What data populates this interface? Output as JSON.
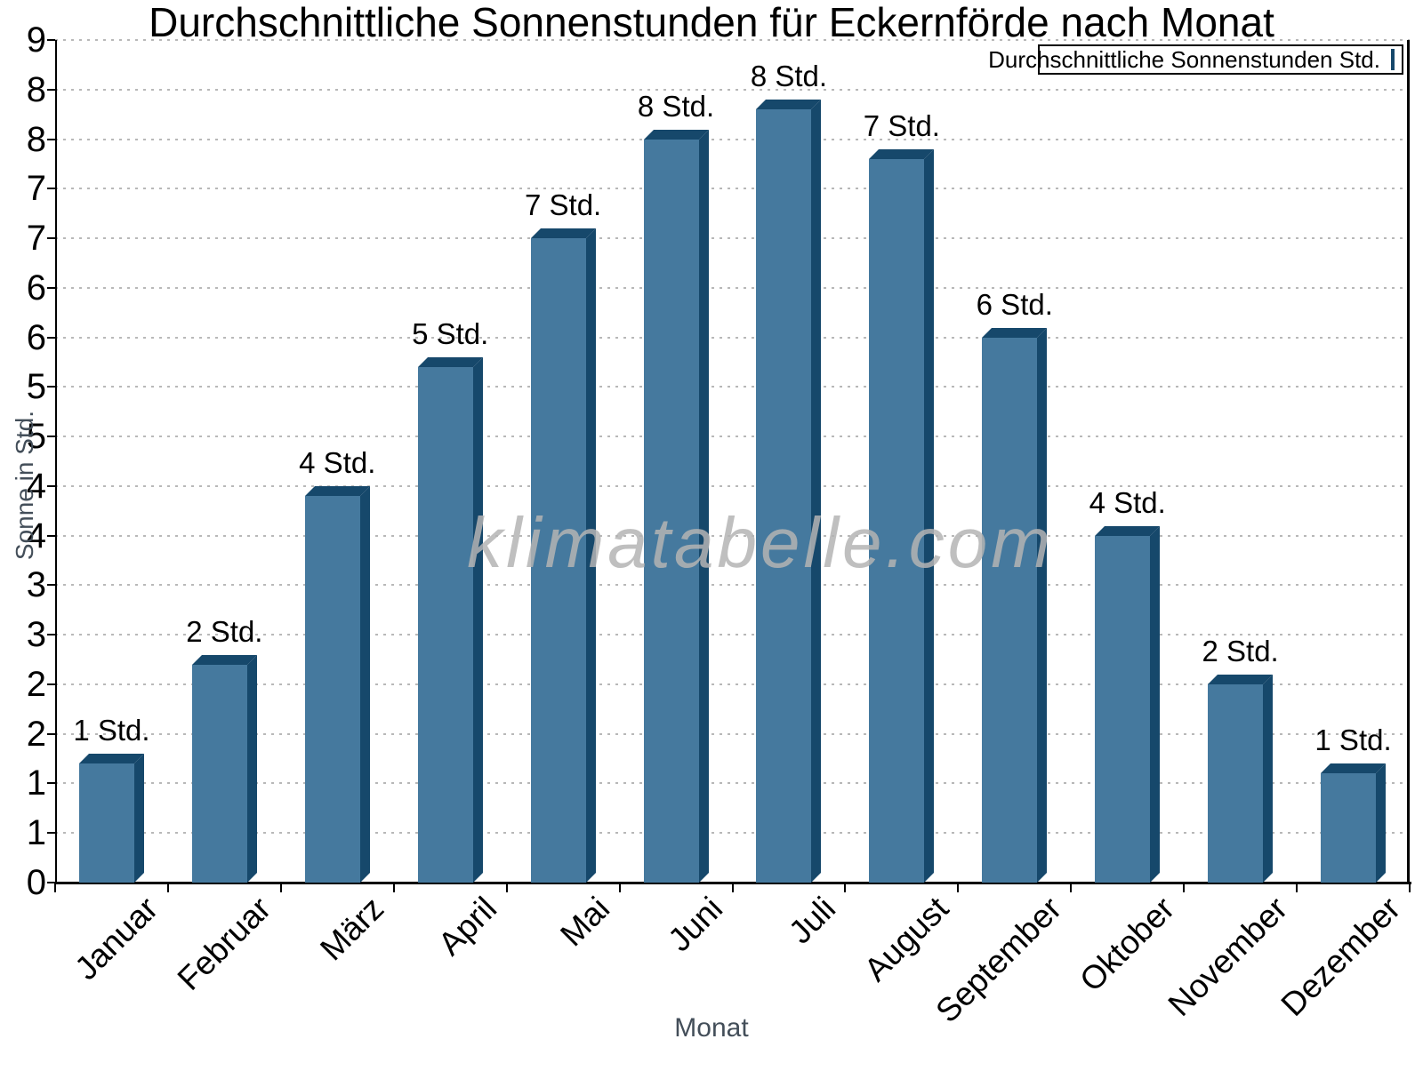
{
  "title": "Durchschnittliche Sonnenstunden für Eckernförde nach Monat",
  "legend": {
    "label": "Durchschnittliche Sonnenstunden Std."
  },
  "watermark": {
    "text": "klimatabelle.com"
  },
  "axes": {
    "x_title": "Monat",
    "y_title": "Sonne in Std.",
    "y_tick_labels_bottom_to_top": [
      "0",
      "1",
      "1",
      "2",
      "2",
      "3",
      "3",
      "4",
      "4",
      "5",
      "5",
      "6",
      "6",
      "7",
      "7",
      "8",
      "8",
      "9"
    ]
  },
  "chart_data": {
    "type": "bar",
    "title": "Durchschnittliche Sonnenstunden für Eckernförde nach Monat",
    "categories": [
      "Januar",
      "Februar",
      "März",
      "April",
      "Mai",
      "Juni",
      "Juli",
      "August",
      "September",
      "Oktober",
      "November",
      "Dezember"
    ],
    "series": [
      {
        "name": "Durchschnittliche Sonnenstunden Std.",
        "values": [
          1.2,
          2.2,
          3.9,
          5.2,
          6.5,
          7.5,
          7.8,
          7.3,
          5.5,
          3.5,
          2.0,
          1.1
        ],
        "data_labels": [
          "1 Std.",
          "2 Std.",
          "4 Std.",
          "5 Std.",
          "7 Std.",
          "8 Std.",
          "8 Std.",
          "7 Std.",
          "6 Std.",
          "4 Std.",
          "2 Std.",
          "1 Std."
        ]
      }
    ],
    "xlabel": "Monat",
    "ylabel": "Sonne in Std.",
    "ylim": [
      0,
      8.5
    ],
    "y_tick_step": 0.5,
    "y_tick_label_rule": "rounded to integer (half up)",
    "grid": "horizontal-dotted",
    "legend_position": "top-right",
    "style": "3d-beveled-bars",
    "colors": {
      "bar_face": "#45799e",
      "bar_depth": "#16486b",
      "gridline": "#b8b8b8",
      "axis": "#000000",
      "tick_label": "#000000",
      "axis_title": "#434e59",
      "watermark": "#b4b4b4"
    }
  }
}
